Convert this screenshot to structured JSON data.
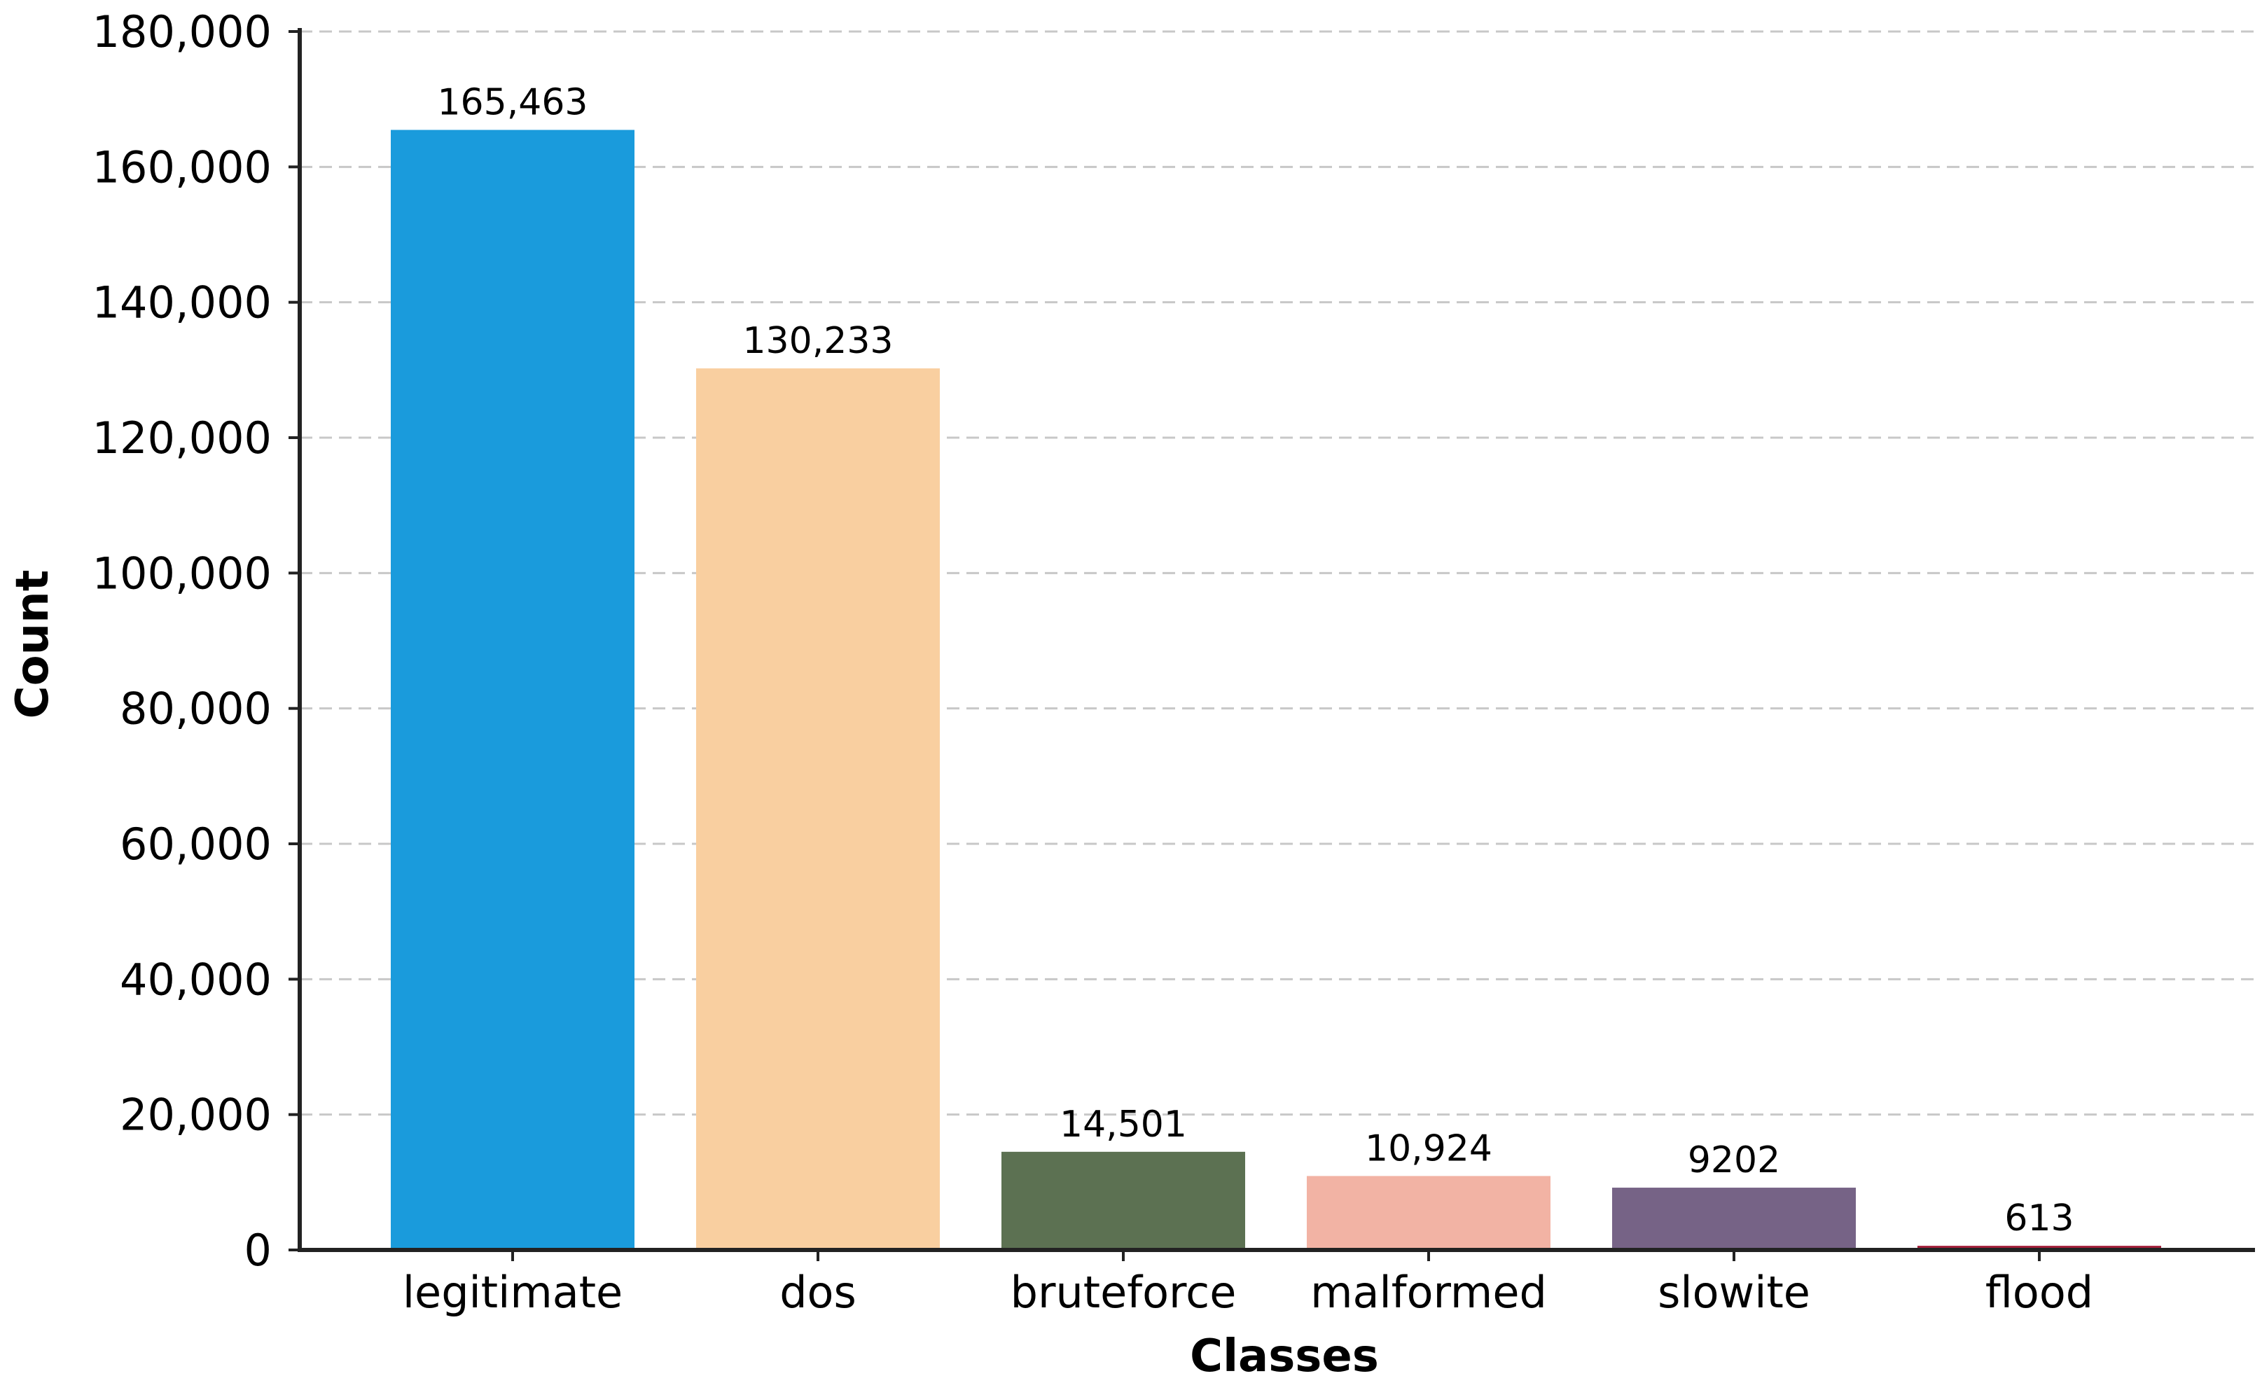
{
  "chart_data": {
    "type": "bar",
    "categories": [
      "legitimate",
      "dos",
      "bruteforce",
      "malformed",
      "slowite",
      "flood"
    ],
    "values": [
      165463,
      130233,
      14501,
      10924,
      9202,
      613
    ],
    "value_labels": [
      "165,463",
      "130,233",
      "14,501",
      "10,924",
      "9202",
      "613"
    ],
    "colors": [
      "#1a9bdc",
      "#f9cfa0",
      "#5c7152",
      "#f2b3a4",
      "#766386",
      "#a3203a"
    ],
    "xlabel": "Classes",
    "ylabel": "Count",
    "ylim": [
      0,
      180000
    ],
    "yticks": [
      0,
      20000,
      40000,
      60000,
      80000,
      100000,
      120000,
      140000,
      160000,
      180000
    ],
    "ytick_labels": [
      "0",
      "20,000",
      "40,000",
      "60,000",
      "80,000",
      "100,000",
      "120,000",
      "140,000",
      "160,000",
      "180,000"
    ],
    "grid": "horizontal-dashed",
    "legend": "none"
  }
}
